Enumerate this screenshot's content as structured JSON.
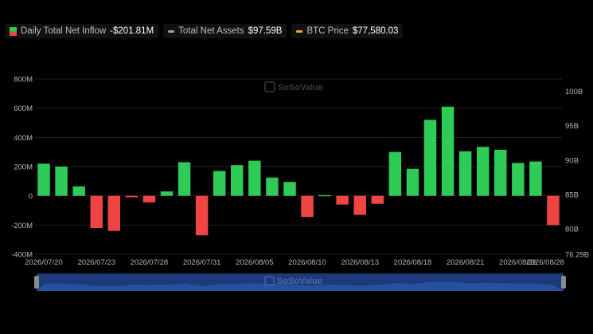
{
  "legend": [
    {
      "label": "Daily Total Net Inflow",
      "value": "-$201.81M",
      "color": "#2ecc57"
    },
    {
      "label": "Total Net Assets",
      "value": "$97.59B",
      "color": "#9ca3af"
    },
    {
      "label": "BTC Price",
      "value": "$77,580.03",
      "color": "#f5a623"
    }
  ],
  "watermark": "SoSoValue",
  "chart_data": {
    "type": "bar",
    "categories": [
      "2026/07/20",
      "2026/07/21",
      "2026/07/22",
      "2026/07/23",
      "2026/07/24",
      "2026/07/27",
      "2026/07/28",
      "2026/07/29",
      "2026/07/30",
      "2026/07/31",
      "2026/08/03",
      "2026/08/04",
      "2026/08/05",
      "2026/08/06",
      "2026/08/07",
      "2026/08/10",
      "2026/08/11",
      "2026/08/12",
      "2026/08/13",
      "2026/08/14",
      "2026/08/17",
      "2026/08/18",
      "2026/08/19",
      "2026/08/20",
      "2026/08/21",
      "2026/08/24",
      "2026/08/25",
      "2026/08/26",
      "2026/08/27",
      "2026/08/28"
    ],
    "values": [
      220,
      200,
      65,
      -220,
      -240,
      -10,
      -45,
      30,
      230,
      -270,
      170,
      210,
      240,
      125,
      95,
      -145,
      5,
      -60,
      -130,
      -55,
      300,
      185,
      520,
      610,
      305,
      335,
      315,
      225,
      235,
      -200
    ],
    "positive_color": "#2ecc57",
    "negative_color": "#ef4444",
    "xtick_labels": [
      "2026/07/20",
      "2026/07/23",
      "2026/07/28",
      "2026/07/31",
      "2026/08/05",
      "2026/08/10",
      "2026/08/13",
      "2026/08/18",
      "2026/08/21",
      "2026/08/26",
      "2026/08/28"
    ],
    "left_axis": {
      "ticks": [
        800,
        600,
        400,
        200,
        0,
        -200,
        -400
      ],
      "labels": [
        "800M",
        "600M",
        "400M",
        "200M",
        "0",
        "-200M",
        "-400M"
      ],
      "ylim": [
        -400,
        800
      ]
    },
    "right_axis": {
      "ticks": [
        100,
        95,
        90,
        85,
        80
      ],
      "labels": [
        "100B",
        "95B",
        "90B",
        "85B",
        "80B"
      ],
      "min_label": "76.29B",
      "ylim": [
        76.29,
        101.8
      ]
    },
    "grid": true,
    "navigator": true
  }
}
